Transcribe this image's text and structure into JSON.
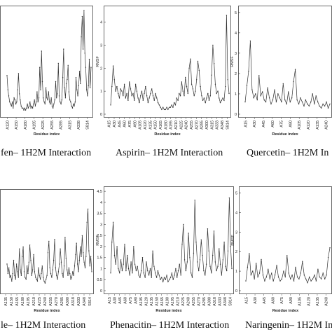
{
  "colors": {
    "line": "#333333",
    "frame": "#444444",
    "background": "#ffffff"
  },
  "chart_data": [
    {
      "type": "line",
      "panel": "top-left",
      "caption": "fen– 1H2M Interaction",
      "xlabel": "Residue index",
      "ylabel": "",
      "yticks": [],
      "ylim": [
        0,
        5.2
      ],
      "xticks": [
        "A120",
        "A150",
        "A180",
        "A195",
        "A225",
        "A255",
        "A285",
        "A315",
        "A338",
        "S814"
      ],
      "y": [
        1.9,
        1.2,
        0.9,
        0.6,
        0.5,
        0.4,
        0.6,
        0.3,
        0.8,
        0.7,
        0.5,
        0.6,
        1.2,
        2.0,
        1.0,
        0.7,
        0.4,
        0.3,
        0.3,
        0.2,
        0.3,
        0.2,
        0.3,
        0.5,
        0.3,
        0.4,
        0.6,
        0.3,
        0.4,
        0.3,
        0.5,
        0.7,
        0.4,
        0.6,
        1.1,
        0.6,
        0.8,
        2.3,
        1.2,
        3.1,
        1.6,
        0.8,
        0.6,
        0.5,
        1.3,
        0.8,
        0.7,
        1.1,
        0.6,
        0.5,
        0.8,
        0.4,
        0.3,
        0.5,
        0.7,
        1.6,
        0.8,
        1.0,
        2.5,
        0.9,
        0.6,
        0.5,
        0.7,
        1.8,
        3.2,
        1.3,
        0.8,
        1.5,
        1.7,
        2.4,
        1.1,
        0.7,
        0.6,
        0.4,
        0.3,
        0.5,
        0.4,
        0.6,
        1.8,
        1.2,
        0.9,
        1.4,
        2.1,
        1.5,
        3.8,
        4.8,
        3.2,
        5.1,
        3.0,
        2.3,
        1.2,
        0.9,
        1.4,
        2.7,
        1.3,
        2.3
      ]
    },
    {
      "type": "line",
      "panel": "top-middle",
      "caption": "Aspirin– 1H2M Interaction",
      "xlabel": "Residue index",
      "ylabel": "RMSF",
      "ylim": [
        0,
        4.6
      ],
      "yticks": [
        "0",
        "1",
        "2",
        "3",
        "4"
      ],
      "xticks": [
        "A15",
        "A30",
        "A45",
        "A60",
        "A75",
        "A90",
        "A105",
        "A120",
        "A135",
        "A150",
        "A165",
        "A180",
        "A195",
        "A210",
        "A225",
        "A240",
        "A255",
        "A270",
        "A285",
        "A300",
        "A315",
        "A333",
        "A348",
        "S814"
      ],
      "y": [
        0.4,
        1.2,
        2.1,
        1.5,
        1.0,
        1.2,
        0.9,
        0.7,
        1.1,
        1.0,
        0.8,
        1.3,
        0.7,
        0.9,
        0.6,
        1.4,
        1.1,
        0.8,
        0.9,
        0.6,
        1.3,
        1.0,
        0.7,
        0.5,
        0.8,
        1.0,
        0.6,
        0.9,
        1.2,
        0.8,
        0.5,
        0.7,
        0.9,
        1.1,
        0.8,
        0.6,
        0.9,
        0.7,
        0.5,
        0.4,
        0.3,
        0.2,
        0.3,
        0.2,
        0.2,
        0.3,
        0.2,
        0.3,
        0.3,
        0.4,
        0.3,
        0.5,
        0.4,
        0.7,
        0.6,
        0.9,
        0.8,
        1.4,
        1.0,
        0.8,
        1.6,
        1.2,
        0.9,
        2.0,
        2.4,
        1.3,
        1.1,
        0.8,
        1.0,
        1.5,
        2.3,
        1.9,
        1.2,
        0.8,
        0.6,
        0.7,
        0.5,
        0.7,
        0.9,
        0.6,
        0.8,
        1.7,
        3.0,
        2.2,
        1.3,
        0.9,
        1.0,
        0.7,
        0.5,
        0.6,
        0.7,
        0.6,
        1.2,
        4.3,
        1.5,
        0.9
      ]
    },
    {
      "type": "line",
      "panel": "top-right",
      "caption": "Quercetin– 1H2M In",
      "xlabel": "Residue index",
      "ylabel": "RMSF",
      "ylim": [
        0,
        5.2
      ],
      "yticks": [
        "0",
        "1",
        "2",
        "3",
        "4",
        "5"
      ],
      "xticks": [
        "A15",
        "A30",
        "A45",
        "A60",
        "A75",
        "A90",
        "A105",
        "A120",
        "A135",
        "A240"
      ],
      "y": [
        0.6,
        1.4,
        2.1,
        3.6,
        1.2,
        0.8,
        1.0,
        0.7,
        1.9,
        0.9,
        1.1,
        0.7,
        0.6,
        1.3,
        0.8,
        0.5,
        0.7,
        1.2,
        0.6,
        1.0,
        0.8,
        0.6,
        1.5,
        0.7,
        0.5,
        1.1,
        0.6,
        0.8,
        1.6,
        2.2,
        0.7,
        0.5,
        0.8,
        0.6,
        0.4,
        0.7,
        0.5,
        0.4,
        0.6,
        1.0,
        0.5,
        0.9,
        0.6,
        0.4,
        0.3,
        0.5,
        0.4,
        0.6,
        0.3,
        0.5
      ]
    },
    {
      "type": "line",
      "panel": "bottom-left",
      "caption": "le– 1H2M Interaction",
      "xlabel": "Residue index",
      "ylabel": "",
      "yticks": [],
      "ylim": [
        0,
        5.2
      ],
      "xticks": [
        "A135",
        "A150",
        "A165",
        "A180",
        "A195",
        "A210",
        "A225",
        "A240",
        "A255",
        "A270",
        "A285",
        "A300",
        "A318",
        "A333",
        "A348",
        "S814"
      ],
      "y": [
        1.4,
        0.9,
        1.2,
        0.7,
        0.8,
        0.5,
        0.9,
        1.6,
        0.8,
        0.6,
        1.4,
        1.0,
        0.7,
        2.2,
        1.1,
        0.8,
        1.8,
        2.3,
        1.0,
        0.7,
        0.6,
        1.3,
        0.9,
        1.5,
        2.4,
        1.6,
        0.8,
        1.1,
        1.9,
        1.0,
        0.7,
        0.6,
        0.5,
        1.2,
        0.8,
        0.6,
        0.9,
        1.3,
        0.7,
        0.5,
        0.4,
        0.6,
        0.8,
        2.0,
        2.6,
        1.2,
        0.9,
        0.7,
        1.1,
        1.6,
        2.7,
        1.2,
        0.8,
        0.6,
        1.0,
        1.4,
        2.2,
        1.5,
        0.9,
        0.7,
        1.3,
        2.8,
        1.7,
        1.1,
        0.8,
        1.2,
        0.9,
        0.6,
        0.7,
        1.0,
        0.8,
        1.3,
        1.9,
        2.5,
        1.4,
        1.0,
        1.6,
        2.3,
        1.8,
        2.9,
        2.0,
        1.5,
        1.2,
        1.8,
        3.6,
        4.3,
        2.1,
        1.3,
        1.8,
        1.0
      ]
    },
    {
      "type": "line",
      "panel": "bottom-middle",
      "caption": "Phenacitin– 1H2M Interaction",
      "xlabel": "Residue index",
      "ylabel": "RMSF",
      "ylim": [
        0,
        4.6
      ],
      "yticks": [
        "0",
        "0.5",
        "1",
        "1.5",
        "2",
        "2.5",
        "3",
        "3.5",
        "4",
        "4.5"
      ],
      "xticks": [
        "A15",
        "A30",
        "A45",
        "A60",
        "A75",
        "A90",
        "A105",
        "A120",
        "A135",
        "A150",
        "A165",
        "A180",
        "A195",
        "A210",
        "A225",
        "A240",
        "A255",
        "A270",
        "A285",
        "A300",
        "A318",
        "A333",
        "A348",
        "S814"
      ],
      "y": [
        0.8,
        2.2,
        3.1,
        1.6,
        1.2,
        2.0,
        1.0,
        0.8,
        1.4,
        0.9,
        1.2,
        2.1,
        0.9,
        1.6,
        1.0,
        0.7,
        1.3,
        0.8,
        2.0,
        1.2,
        0.9,
        1.1,
        0.7,
        0.6,
        0.9,
        1.5,
        0.8,
        0.6,
        1.3,
        0.9,
        0.7,
        1.0,
        0.6,
        1.8,
        1.1,
        0.8,
        0.6,
        0.9,
        0.7,
        0.5,
        0.6,
        0.4,
        0.6,
        0.5,
        0.7,
        0.4,
        0.5,
        0.6,
        0.8,
        0.5,
        0.7,
        1.0,
        0.6,
        0.9,
        1.2,
        0.7,
        2.1,
        3.0,
        1.4,
        0.9,
        1.3,
        2.6,
        1.5,
        0.8,
        0.6,
        1.7,
        4.1,
        2.2,
        1.3,
        0.9,
        1.4,
        2.3,
        1.6,
        0.9,
        0.7,
        1.2,
        2.8,
        1.8,
        1.1,
        0.8,
        1.6,
        2.7,
        1.3,
        0.9,
        1.1,
        1.9,
        1.2,
        0.7,
        1.4,
        2.2,
        1.1,
        0.9,
        1.8,
        4.2,
        2.0,
        1.0
      ]
    },
    {
      "type": "line",
      "panel": "bottom-right",
      "caption": "Naringenin– 1H2M In",
      "xlabel": "Residue index",
      "ylabel": "RMSF",
      "ylim": [
        0,
        5.2
      ],
      "yticks": [
        "0",
        "1",
        "2",
        "3",
        "4",
        "5"
      ],
      "xticks": [
        "A15",
        "A30",
        "A45",
        "A60",
        "A75",
        "A90",
        "A105",
        "A120",
        "A135",
        "A240"
      ],
      "y": [
        0.5,
        1.2,
        1.9,
        0.8,
        1.0,
        0.6,
        1.4,
        0.7,
        0.9,
        1.6,
        0.8,
        0.5,
        0.7,
        1.1,
        0.6,
        0.9,
        0.5,
        0.8,
        1.3,
        0.7,
        0.5,
        0.6,
        1.0,
        0.7,
        1.8,
        0.9,
        0.6,
        0.8,
        0.5,
        1.2,
        0.7,
        0.6,
        0.9,
        1.5,
        0.8,
        0.6,
        0.4,
        0.7,
        0.5,
        0.6,
        0.8,
        0.5,
        1.1,
        0.7,
        0.6,
        0.9,
        0.6,
        0.8,
        1.7,
        2.2
      ]
    }
  ]
}
